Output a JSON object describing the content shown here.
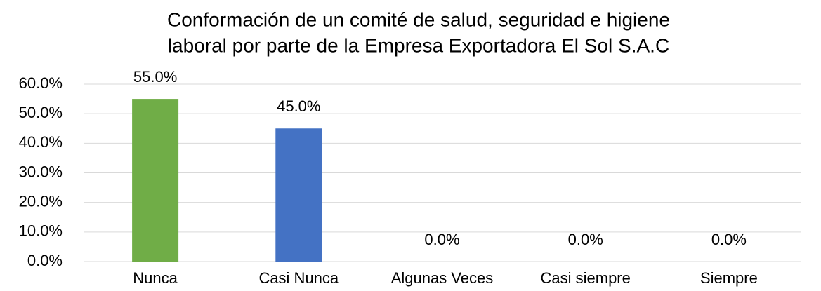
{
  "chart_data": {
    "type": "bar",
    "title": [
      "Conformación de un comité de salud, seguridad e higiene",
      "laboral  por parte de la Empresa Exportadora El Sol S.A.C"
    ],
    "categories": [
      "Nunca",
      "Casi Nunca",
      "Algunas Veces",
      "Casi siempre",
      "Siempre"
    ],
    "values": [
      55,
      45,
      0,
      0,
      0
    ],
    "value_labels": [
      "55.0%",
      "45.0%",
      "0.0%",
      "0.0%",
      "0.0%"
    ],
    "colors": [
      "#70ad47",
      "#4472c4",
      "#a5a5a5",
      "#ffc000",
      "#5b9bd5"
    ],
    "ylim": [
      0,
      60
    ],
    "yticks": [
      {
        "value": 0,
        "label": "0.0%"
      },
      {
        "value": 10,
        "label": "10.0%"
      },
      {
        "value": 20,
        "label": "20.0%"
      },
      {
        "value": 30,
        "label": "30.0%"
      },
      {
        "value": 40,
        "label": "40.0%"
      },
      {
        "value": 50,
        "label": "50.0%"
      },
      {
        "value": 60,
        "label": "60.0%"
      }
    ],
    "grid": true
  }
}
